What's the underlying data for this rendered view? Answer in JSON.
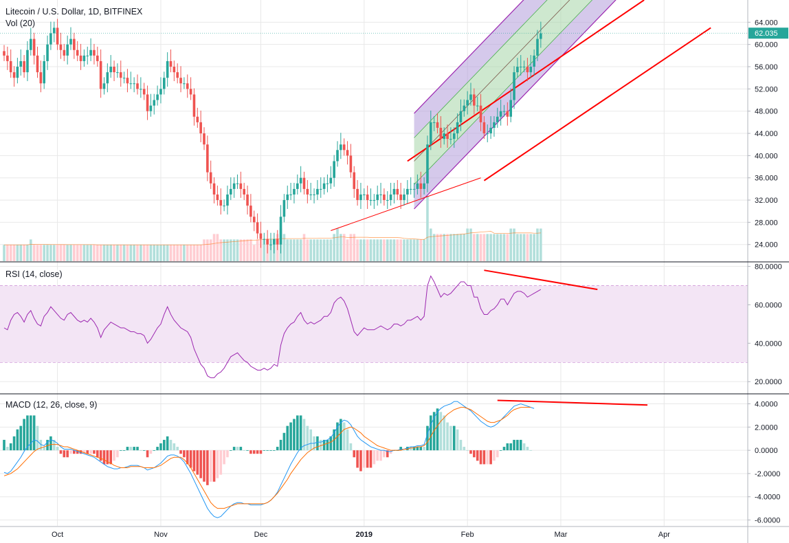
{
  "header": {
    "symbol_line": "Litecoin / U.S. Dollar, 1D, BITFINEX",
    "volume_label": "Vol (20)",
    "rsi_label": "RSI (14, close)",
    "macd_label": "MACD (12, 26, close, 9)"
  },
  "colors": {
    "up": "#26a69a",
    "down": "#ef5350",
    "vol_up": "#b2dfdb",
    "vol_down": "#ffcdd2",
    "channel_line": "#ff0000",
    "channel_outer": "#9c27b0",
    "channel_fill_outer": "#b39ddb",
    "channel_fill_inner": "#a5d6a7",
    "rsi_line": "#9c27b0",
    "rsi_band": "#f3e5f5",
    "macd_line": "#2196f3",
    "signal_line": "#ff6d00",
    "last_price": "#26a69a",
    "grid": "#e8e8e8"
  },
  "chart_data": [
    {
      "type": "candlestick",
      "title": "Litecoin / U.S. Dollar, 1D, BITFINEX",
      "last_price": "62.035",
      "ylim": [
        21,
        68
      ],
      "yticks": [
        "64.000",
        "60.000",
        "56.000",
        "52.000",
        "48.000",
        "44.000",
        "40.000",
        "36.000",
        "32.000",
        "28.000",
        "24.000"
      ],
      "ytick_values": [
        64,
        60,
        56,
        52,
        48,
        44,
        40,
        36,
        32,
        28,
        24
      ],
      "xticks": [
        {
          "label": "Oct",
          "day": 16
        },
        {
          "label": "Nov",
          "day": 47
        },
        {
          "label": "Dec",
          "day": 77
        },
        {
          "label": "2019",
          "day": 108
        },
        {
          "label": "Feb",
          "day": 139
        },
        {
          "label": "Mar",
          "day": 167
        },
        {
          "label": "Apr",
          "day": 198
        }
      ],
      "close": [
        58,
        57,
        55,
        54,
        56,
        57,
        55,
        59,
        61,
        58,
        55,
        53,
        57,
        60,
        62,
        63,
        60,
        59,
        58,
        60,
        61,
        59,
        58,
        57,
        58,
        58,
        59,
        58,
        57,
        52,
        53,
        55,
        56,
        55,
        55,
        54,
        54,
        53,
        53,
        53,
        52,
        52,
        51,
        48,
        49,
        50,
        51,
        52,
        54,
        57,
        56,
        55,
        54,
        53,
        53,
        52,
        51,
        47,
        46,
        44,
        42,
        37,
        35,
        33,
        32,
        31,
        31,
        33,
        34,
        35,
        35,
        34,
        33,
        31,
        29,
        28,
        26,
        25,
        25,
        24,
        24,
        25,
        24,
        29,
        32,
        33,
        33,
        34,
        35,
        36,
        34,
        33,
        33,
        33,
        34,
        34,
        35,
        35,
        36,
        39,
        41,
        42,
        41,
        40,
        37,
        34,
        32,
        33,
        33,
        32,
        32,
        32,
        33,
        33,
        32,
        32,
        33,
        34,
        33,
        32,
        33,
        34,
        34,
        34,
        35,
        34,
        35,
        42,
        46,
        46,
        45,
        43,
        44,
        43,
        43,
        44,
        46,
        48,
        49,
        50,
        51,
        49,
        49,
        46,
        44,
        44,
        45,
        46,
        47,
        48,
        48,
        47,
        50,
        55,
        56,
        56,
        56,
        55,
        56,
        58,
        61,
        62
      ],
      "volume": [
        3,
        3,
        3,
        3,
        3,
        3,
        3,
        3,
        4,
        3,
        3,
        3,
        3,
        3,
        3,
        3,
        3,
        3,
        3,
        3,
        3,
        3,
        3,
        3,
        3,
        3,
        3,
        3,
        3,
        3,
        3,
        3,
        3,
        3,
        3,
        3,
        3,
        3,
        3,
        3,
        3,
        3,
        3,
        3,
        3,
        3,
        3,
        3,
        3,
        3,
        3,
        3,
        3,
        3,
        3,
        3,
        3,
        3,
        3,
        3,
        4,
        4,
        4,
        5,
        5,
        4,
        4,
        4,
        4,
        4,
        4,
        4,
        4,
        4,
        4,
        3,
        4,
        4,
        4,
        4,
        4,
        4,
        5,
        6,
        5,
        4,
        4,
        4,
        4,
        4,
        5,
        4,
        4,
        4,
        4,
        4,
        4,
        4,
        4,
        5,
        6,
        5,
        5,
        4,
        5,
        5,
        4,
        4,
        4,
        4,
        4,
        4,
        4,
        4,
        4,
        4,
        4,
        4,
        4,
        4,
        4,
        4,
        4,
        4,
        4,
        4,
        4,
        12,
        6,
        5,
        5,
        5,
        5,
        5,
        5,
        5,
        5,
        5,
        5,
        6,
        6,
        5,
        5,
        5,
        5,
        5,
        5,
        5,
        5,
        5,
        5,
        5,
        6,
        6,
        5,
        5,
        5,
        5,
        5,
        5,
        6,
        6
      ]
    },
    {
      "type": "line",
      "title": "RSI (14, close)",
      "ylim": [
        14,
        82
      ],
      "band": [
        30,
        70
      ],
      "yticks": [
        "80.0000",
        "60.0000",
        "40.0000",
        "20.0000"
      ],
      "ytick_values": [
        80,
        60,
        40,
        20
      ],
      "series": [
        {
          "values": [
            48,
            47,
            52,
            55,
            56,
            54,
            51,
            55,
            57,
            53,
            50,
            49,
            54,
            56,
            59,
            57,
            55,
            53,
            52,
            55,
            56,
            54,
            52,
            51,
            52,
            51,
            53,
            51,
            48,
            43,
            47,
            49,
            51,
            50,
            49,
            48,
            48,
            47,
            46,
            46,
            45,
            45,
            44,
            40,
            42,
            45,
            48,
            50,
            55,
            59,
            55,
            52,
            50,
            48,
            47,
            46,
            43,
            37,
            33,
            29,
            27,
            23,
            22,
            22,
            24,
            25,
            27,
            30,
            33,
            34,
            35,
            33,
            31,
            30,
            28,
            27,
            26,
            26,
            27,
            26,
            27,
            29,
            28,
            39,
            45,
            48,
            50,
            51,
            54,
            56,
            52,
            50,
            51,
            50,
            51,
            52,
            54,
            54,
            56,
            61,
            63,
            64,
            62,
            58,
            52,
            46,
            44,
            46,
            48,
            47,
            47,
            47,
            48,
            49,
            48,
            47,
            48,
            50,
            50,
            49,
            50,
            52,
            52,
            53,
            54,
            52,
            54,
            70,
            75,
            72,
            68,
            64,
            66,
            65,
            66,
            68,
            70,
            72,
            72,
            70,
            70,
            64,
            64,
            58,
            55,
            55,
            57,
            58,
            60,
            63,
            63,
            60,
            63,
            66,
            67,
            67,
            66,
            64,
            65,
            66,
            67,
            68
          ]
        }
      ]
    },
    {
      "type": "line",
      "title": "MACD (12, 26, close, 9)",
      "ylim": [
        -6.5,
        4.8
      ],
      "yticks": [
        "4.0000",
        "2.0000",
        "0.0000",
        "-2.0000",
        "-4.0000",
        "-6.0000"
      ],
      "ytick_values": [
        4,
        2,
        0,
        -2,
        -4,
        -6
      ],
      "series": [
        {
          "name": "MACD",
          "values": [
            -1.9,
            -2.0,
            -1.8,
            -1.4,
            -1.0,
            -0.6,
            -0.1,
            0.3,
            0.6,
            0.9,
            0.8,
            0.5,
            0.4,
            0.7,
            0.9,
            0.8,
            0.6,
            0.3,
            0.1,
            0.1,
            0.1,
            0.0,
            -0.1,
            -0.2,
            -0.3,
            -0.4,
            -0.5,
            -0.6,
            -0.8,
            -1.0,
            -1.2,
            -1.4,
            -1.5,
            -1.6,
            -1.6,
            -1.5,
            -1.5,
            -1.4,
            -1.3,
            -1.3,
            -1.3,
            -1.4,
            -1.5,
            -1.7,
            -1.6,
            -1.5,
            -1.3,
            -1.1,
            -0.8,
            -0.5,
            -0.4,
            -0.4,
            -0.5,
            -0.7,
            -1.0,
            -1.5,
            -2.0,
            -2.6,
            -3.2,
            -3.8,
            -4.4,
            -5.0,
            -5.4,
            -5.7,
            -5.8,
            -5.7,
            -5.4,
            -5.1,
            -4.8,
            -4.6,
            -4.5,
            -4.5,
            -4.6,
            -4.6,
            -4.7,
            -4.7,
            -4.7,
            -4.7,
            -4.6,
            -4.5,
            -4.3,
            -4.0,
            -3.6,
            -3.0,
            -2.4,
            -1.8,
            -1.2,
            -0.7,
            -0.2,
            0.2,
            0.4,
            0.5,
            0.6,
            0.6,
            0.7,
            0.7,
            0.8,
            0.9,
            1.1,
            1.5,
            2.0,
            2.4,
            2.6,
            2.5,
            2.2,
            1.7,
            1.2,
            0.9,
            0.7,
            0.5,
            0.3,
            0.2,
            0.1,
            0.0,
            0.0,
            -0.1,
            -0.1,
            0.0,
            0.0,
            0.1,
            0.1,
            0.2,
            0.3,
            0.3,
            0.4,
            0.4,
            0.5,
            1.4,
            2.2,
            2.8,
            3.3,
            3.6,
            3.8,
            3.9,
            4.0,
            4.2,
            4.2,
            4.0,
            3.8,
            3.6,
            3.4,
            3.1,
            2.8,
            2.5,
            2.3,
            2.1,
            2.0,
            2.1,
            2.3,
            2.6,
            2.9,
            3.2,
            3.5,
            3.8,
            3.9,
            4.0,
            3.9,
            3.8,
            3.7,
            3.6
          ]
        },
        {
          "name": "Signal",
          "values": [
            -2.2,
            -2.1,
            -2.0,
            -1.8,
            -1.6,
            -1.3,
            -1.0,
            -0.7,
            -0.4,
            -0.1,
            0.1,
            0.2,
            0.3,
            0.4,
            0.5,
            0.5,
            0.5,
            0.4,
            0.3,
            0.3,
            0.2,
            0.1,
            0.0,
            -0.1,
            -0.2,
            -0.3,
            -0.4,
            -0.5,
            -0.6,
            -0.7,
            -0.8,
            -1.0,
            -1.1,
            -1.3,
            -1.4,
            -1.5,
            -1.5,
            -1.5,
            -1.4,
            -1.4,
            -1.4,
            -1.4,
            -1.5,
            -1.5,
            -1.5,
            -1.5,
            -1.4,
            -1.3,
            -1.1,
            -0.9,
            -0.7,
            -0.6,
            -0.6,
            -0.6,
            -0.8,
            -1.1,
            -1.5,
            -2.0,
            -2.5,
            -3.0,
            -3.5,
            -4.0,
            -4.5,
            -4.8,
            -5.0,
            -5.0,
            -5.0,
            -4.9,
            -4.8,
            -4.7,
            -4.6,
            -4.6,
            -4.6,
            -4.6,
            -4.6,
            -4.6,
            -4.6,
            -4.6,
            -4.6,
            -4.5,
            -4.3,
            -4.0,
            -3.7,
            -3.3,
            -2.9,
            -2.5,
            -2.0,
            -1.6,
            -1.2,
            -0.8,
            -0.5,
            -0.2,
            0.0,
            0.2,
            0.3,
            0.4,
            0.5,
            0.6,
            0.7,
            0.9,
            1.2,
            1.5,
            1.8,
            1.9,
            2.0,
            1.9,
            1.7,
            1.5,
            1.2,
            1.0,
            0.8,
            0.6,
            0.4,
            0.3,
            0.2,
            0.1,
            0.0,
            0.0,
            0.0,
            0.0,
            0.1,
            0.1,
            0.2,
            0.2,
            0.3,
            0.3,
            0.4,
            0.7,
            1.2,
            1.7,
            2.1,
            2.5,
            2.8,
            3.1,
            3.3,
            3.5,
            3.6,
            3.7,
            3.7,
            3.6,
            3.5,
            3.3,
            3.1,
            2.9,
            2.7,
            2.5,
            2.4,
            2.4,
            2.5,
            2.6,
            2.8,
            3.0,
            3.3,
            3.5,
            3.6,
            3.7,
            3.7,
            3.7,
            3.7
          ]
        }
      ]
    }
  ]
}
